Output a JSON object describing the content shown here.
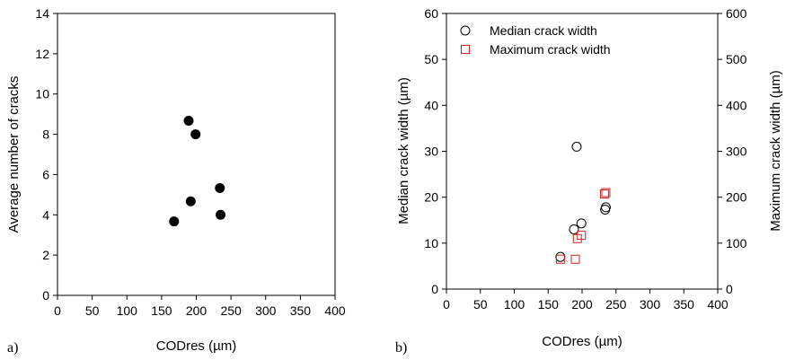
{
  "chart_data": [
    {
      "type": "scatter",
      "panel_label": "a)",
      "xlabel": "CODres (µm)",
      "ylabel": "Average number of cracks",
      "xlim": [
        0,
        400
      ],
      "ylim": [
        0,
        14
      ],
      "xticks": [
        0,
        50,
        100,
        150,
        200,
        250,
        300,
        350,
        400
      ],
      "yticks": [
        0,
        2,
        4,
        6,
        8,
        10,
        12,
        14
      ],
      "series": [
        {
          "marker": "filled-circle",
          "color": "#000000",
          "points": [
            {
              "x": 168,
              "y": 3.67
            },
            {
              "x": 189,
              "y": 8.67
            },
            {
              "x": 192,
              "y": 4.67
            },
            {
              "x": 199,
              "y": 8.0
            },
            {
              "x": 234,
              "y": 5.33
            },
            {
              "x": 235,
              "y": 4.0
            }
          ]
        }
      ]
    },
    {
      "type": "scatter",
      "panel_label": "b)",
      "xlabel": "CODres (µm)",
      "ylabel": "Median crack width (µm)",
      "y2label": "Maximum crack width (µm)",
      "xlim": [
        0,
        400
      ],
      "ylim": [
        0,
        60
      ],
      "y2lim": [
        0,
        600
      ],
      "xticks": [
        0,
        50,
        100,
        150,
        200,
        250,
        300,
        350,
        400
      ],
      "yticks": [
        0,
        10,
        20,
        30,
        40,
        50,
        60
      ],
      "y2ticks": [
        0,
        100,
        200,
        300,
        400,
        500,
        600
      ],
      "legend_position": "top-left",
      "series": [
        {
          "name": "Median crack width",
          "axis": "left",
          "marker": "open-circle",
          "color": "#000000",
          "points": [
            {
              "x": 168,
              "y": 7.0
            },
            {
              "x": 188,
              "y": 13.0
            },
            {
              "x": 192,
              "y": 31.0
            },
            {
              "x": 199,
              "y": 14.3
            },
            {
              "x": 234,
              "y": 17.3
            },
            {
              "x": 235,
              "y": 17.8
            }
          ]
        },
        {
          "name": "Maximum crack width",
          "axis": "right",
          "marker": "open-square",
          "color": "#cc2222",
          "points": [
            {
              "x": 168,
              "y": 65
            },
            {
              "x": 190,
              "y": 65
            },
            {
              "x": 193,
              "y": 110
            },
            {
              "x": 199,
              "y": 117
            },
            {
              "x": 233,
              "y": 207
            },
            {
              "x": 235,
              "y": 210
            }
          ]
        }
      ]
    }
  ]
}
